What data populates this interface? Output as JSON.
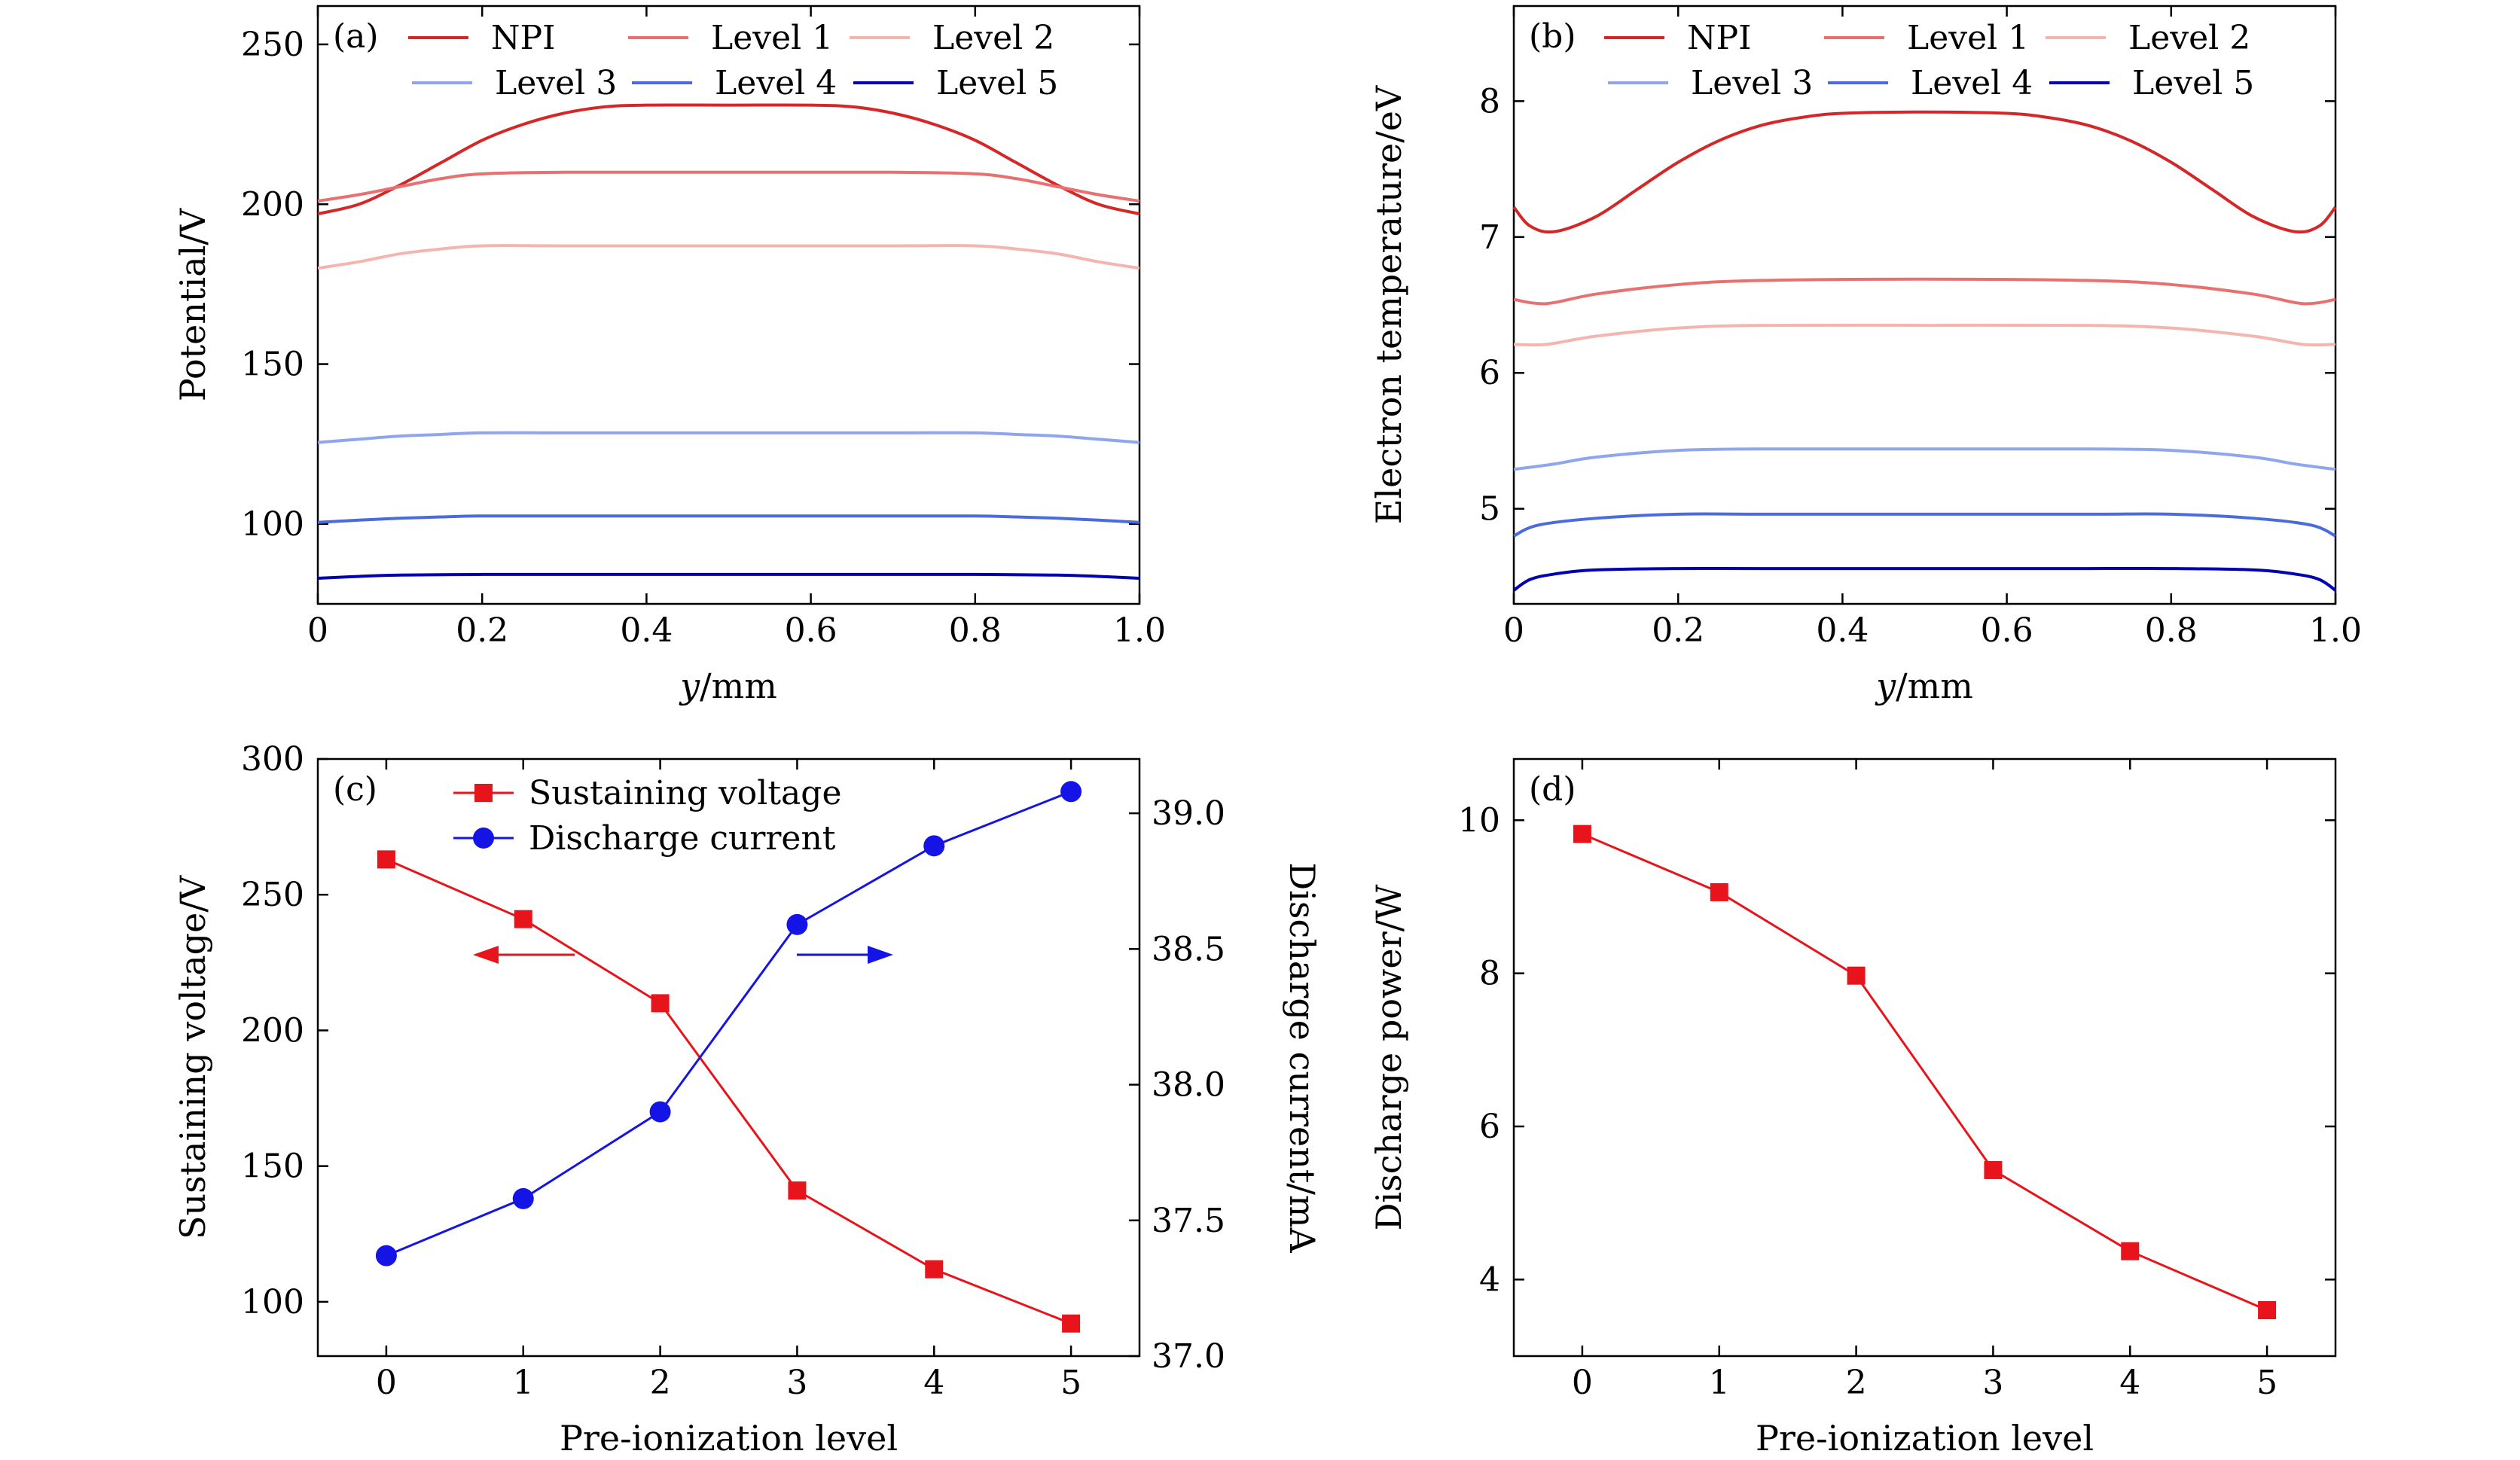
{
  "chart_data": [
    {
      "panel": "(a)",
      "type": "line",
      "xlabel": "y/mm",
      "ylabel": "Potential/V",
      "xlim": [
        0,
        1.0
      ],
      "ylim": [
        75,
        262
      ],
      "xticks": [
        0,
        0.2,
        0.4,
        0.6,
        0.8,
        1.0
      ],
      "xticklabels": [
        "0",
        "0.2",
        "0.4",
        "0.6",
        "0.8",
        "1.0"
      ],
      "yticks": [
        100,
        150,
        200,
        250
      ],
      "yticklabels": [
        "100",
        "150",
        "200",
        "250"
      ],
      "legend": "top",
      "grid": false,
      "series": [
        {
          "name": "NPI",
          "color": "#d62728",
          "x": [
            0,
            0.05,
            0.1,
            0.15,
            0.2,
            0.25,
            0.3,
            0.35,
            0.4,
            0.5,
            0.6,
            0.65,
            0.7,
            0.75,
            0.8,
            0.85,
            0.9,
            0.95,
            1.0
          ],
          "y": [
            197,
            200,
            206,
            213,
            220,
            225,
            228.5,
            230.5,
            231,
            231,
            231,
            230.5,
            228.5,
            225,
            220,
            213,
            206,
            200,
            197
          ]
        },
        {
          "name": "Level 1",
          "color": "#e8706f",
          "x": [
            0,
            0.05,
            0.1,
            0.15,
            0.2,
            0.3,
            0.5,
            0.7,
            0.8,
            0.85,
            0.9,
            0.95,
            1.0
          ],
          "y": [
            201,
            203,
            205.5,
            208,
            209.5,
            210,
            210,
            210,
            209.5,
            208,
            205.5,
            203,
            201
          ]
        },
        {
          "name": "Level 2",
          "color": "#f4b5b0",
          "x": [
            0,
            0.05,
            0.1,
            0.15,
            0.2,
            0.3,
            0.5,
            0.7,
            0.8,
            0.85,
            0.9,
            0.95,
            1.0
          ],
          "y": [
            180,
            182,
            184.5,
            186,
            187,
            187,
            187,
            187,
            187,
            186,
            184.5,
            182,
            180
          ]
        },
        {
          "name": "Level 3",
          "color": "#8fa6ee",
          "x": [
            0,
            0.05,
            0.1,
            0.15,
            0.2,
            0.3,
            0.5,
            0.7,
            0.8,
            0.85,
            0.9,
            0.95,
            1.0
          ],
          "y": [
            125.5,
            126.5,
            127.5,
            128,
            128.5,
            128.5,
            128.5,
            128.5,
            128.5,
            128,
            127.5,
            126.5,
            125.5
          ]
        },
        {
          "name": "Level 4",
          "color": "#4a6bde",
          "x": [
            0,
            0.05,
            0.1,
            0.15,
            0.2,
            0.3,
            0.5,
            0.7,
            0.8,
            0.85,
            0.9,
            0.95,
            1.0
          ],
          "y": [
            100.5,
            101.2,
            101.8,
            102.2,
            102.5,
            102.5,
            102.5,
            102.5,
            102.5,
            102.2,
            101.8,
            101.2,
            100.5
          ]
        },
        {
          "name": "Level 5",
          "color": "#0000b4",
          "x": [
            0,
            0.05,
            0.1,
            0.2,
            0.3,
            0.5,
            0.7,
            0.8,
            0.9,
            0.95,
            1.0
          ],
          "y": [
            83,
            83.6,
            84,
            84.2,
            84.2,
            84.2,
            84.2,
            84.2,
            84,
            83.6,
            83
          ]
        }
      ]
    },
    {
      "panel": "(b)",
      "type": "line",
      "xlabel": "y/mm",
      "ylabel": "Electron temperature/eV",
      "xlim": [
        0,
        1.0
      ],
      "ylim": [
        4.3,
        8.7
      ],
      "xticks": [
        0,
        0.2,
        0.4,
        0.6,
        0.8,
        1.0
      ],
      "xticklabels": [
        "0",
        "0.2",
        "0.4",
        "0.6",
        "0.8",
        "1.0"
      ],
      "yticks": [
        5,
        6,
        7,
        8
      ],
      "yticklabels": [
        "5",
        "6",
        "7",
        "8"
      ],
      "legend": "top",
      "grid": false,
      "series": [
        {
          "name": "NPI",
          "color": "#d62728",
          "x": [
            0,
            0.02,
            0.05,
            0.1,
            0.15,
            0.2,
            0.25,
            0.3,
            0.35,
            0.4,
            0.5,
            0.6,
            0.65,
            0.7,
            0.75,
            0.8,
            0.85,
            0.9,
            0.95,
            0.98,
            1.0
          ],
          "y": [
            7.22,
            7.08,
            7.04,
            7.15,
            7.35,
            7.55,
            7.71,
            7.82,
            7.88,
            7.91,
            7.92,
            7.91,
            7.88,
            7.82,
            7.71,
            7.55,
            7.35,
            7.15,
            7.04,
            7.08,
            7.22
          ]
        },
        {
          "name": "Level 1",
          "color": "#e8706f",
          "x": [
            0,
            0.04,
            0.1,
            0.2,
            0.3,
            0.5,
            0.7,
            0.8,
            0.9,
            0.96,
            1.0
          ],
          "y": [
            6.54,
            6.51,
            6.58,
            6.65,
            6.68,
            6.69,
            6.68,
            6.65,
            6.58,
            6.51,
            6.54
          ]
        },
        {
          "name": "Level 2",
          "color": "#f4b5b0",
          "x": [
            0,
            0.04,
            0.1,
            0.2,
            0.3,
            0.5,
            0.7,
            0.8,
            0.9,
            0.96,
            1.0
          ],
          "y": [
            6.21,
            6.21,
            6.27,
            6.33,
            6.35,
            6.35,
            6.35,
            6.33,
            6.27,
            6.21,
            6.21
          ]
        },
        {
          "name": "Level 3",
          "color": "#8fa6ee",
          "x": [
            0,
            0.05,
            0.1,
            0.2,
            0.3,
            0.5,
            0.7,
            0.8,
            0.9,
            0.95,
            1.0
          ],
          "y": [
            5.29,
            5.33,
            5.38,
            5.43,
            5.44,
            5.44,
            5.44,
            5.43,
            5.38,
            5.33,
            5.29
          ]
        },
        {
          "name": "Level 4",
          "color": "#4a6bde",
          "x": [
            0,
            0.03,
            0.1,
            0.2,
            0.3,
            0.5,
            0.7,
            0.8,
            0.9,
            0.97,
            1.0
          ],
          "y": [
            4.8,
            4.88,
            4.93,
            4.96,
            4.96,
            4.96,
            4.96,
            4.96,
            4.93,
            4.88,
            4.8
          ]
        },
        {
          "name": "Level 5",
          "color": "#0000b4",
          "x": [
            0,
            0.02,
            0.05,
            0.1,
            0.2,
            0.3,
            0.5,
            0.7,
            0.8,
            0.9,
            0.95,
            0.98,
            1.0
          ],
          "y": [
            4.4,
            4.48,
            4.52,
            4.55,
            4.56,
            4.56,
            4.56,
            4.56,
            4.56,
            4.55,
            4.52,
            4.48,
            4.4
          ]
        }
      ]
    },
    {
      "panel": "(c)",
      "type": "line",
      "xlabel": "Pre-ionization level",
      "ylabel": "Sustaining voltage/V",
      "ylabel_right": "Discharge current/mA",
      "xlim": [
        -0.5,
        5.5
      ],
      "ylim": [
        80,
        300
      ],
      "ylim_right": [
        37.0,
        39.2
      ],
      "xticks": [
        0,
        1,
        2,
        3,
        4,
        5
      ],
      "xticklabels": [
        "0",
        "1",
        "2",
        "3",
        "4",
        "5"
      ],
      "yticks": [
        100,
        150,
        200,
        250,
        300
      ],
      "yticklabels": [
        "100",
        "150",
        "200",
        "250",
        "300"
      ],
      "yticks_right": [
        37.0,
        37.5,
        38.0,
        38.5,
        39.0
      ],
      "yticklabels_right": [
        "37.0",
        "37.5",
        "38.0",
        "38.5",
        "39.0"
      ],
      "legend": "top-left",
      "grid": false,
      "series": [
        {
          "name": "Sustaining voltage",
          "axis": "left",
          "marker": "square",
          "color": "#e8141b",
          "x": [
            0,
            1,
            2,
            3,
            4,
            5
          ],
          "y": [
            263,
            241,
            210,
            141,
            112,
            92
          ]
        },
        {
          "name": "Discharge current",
          "axis": "right",
          "marker": "circle",
          "color": "#1414e6",
          "x": [
            0,
            1,
            2,
            3,
            4,
            5
          ],
          "y": [
            37.37,
            37.58,
            37.9,
            38.59,
            38.88,
            39.08
          ]
        }
      ],
      "annotations": [
        {
          "type": "arrow",
          "direction": "left",
          "color": "#e8141b",
          "meaning": "points to left axis"
        },
        {
          "type": "arrow",
          "direction": "right",
          "color": "#1414e6",
          "meaning": "points to right axis"
        }
      ]
    },
    {
      "panel": "(d)",
      "type": "line",
      "xlabel": "Pre-ionization level",
      "ylabel": "Discharge power/W",
      "xlim": [
        -0.5,
        5.5
      ],
      "ylim": [
        3.0,
        10.8
      ],
      "xticks": [
        0,
        1,
        2,
        3,
        4,
        5
      ],
      "xticklabels": [
        "0",
        "1",
        "2",
        "3",
        "4",
        "5"
      ],
      "yticks": [
        4,
        6,
        8,
        10
      ],
      "yticklabels": [
        "4",
        "6",
        "8",
        "10"
      ],
      "legend": "none",
      "grid": false,
      "series": [
        {
          "marker": "square",
          "color": "#e8141b",
          "x": [
            0,
            1,
            2,
            3,
            4,
            5
          ],
          "y": [
            9.82,
            9.06,
            7.97,
            5.43,
            4.37,
            3.6
          ]
        }
      ]
    }
  ]
}
